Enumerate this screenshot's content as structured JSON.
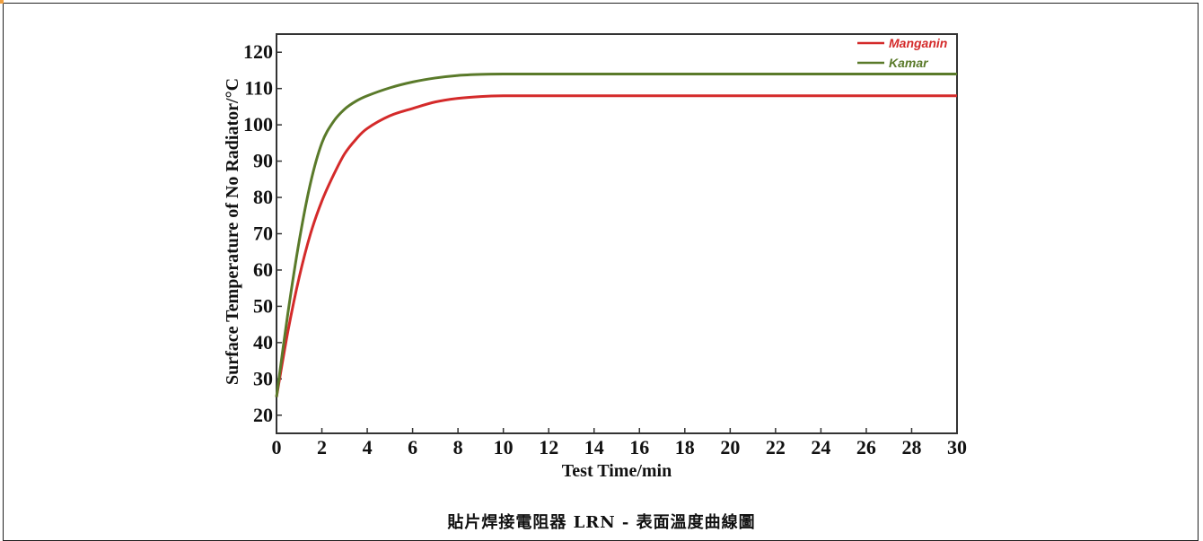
{
  "chart_data": {
    "type": "line",
    "xlabel": "Test Time/min",
    "ylabel": "Surface Temperature of No Radiator/°C",
    "xlim": [
      0,
      30
    ],
    "ylim": [
      15,
      125
    ],
    "x_ticks": [
      0,
      2,
      4,
      6,
      8,
      10,
      12,
      14,
      16,
      18,
      20,
      22,
      24,
      26,
      28,
      30
    ],
    "y_ticks": [
      20,
      30,
      40,
      50,
      60,
      70,
      80,
      90,
      100,
      110,
      120
    ],
    "grid": false,
    "legend_position": "top-right",
    "series": [
      {
        "name": "Manganin",
        "color": "#d42a2a",
        "x": [
          0,
          0.5,
          1,
          1.5,
          2,
          2.5,
          3,
          3.5,
          4,
          5,
          6,
          7,
          8,
          9,
          10,
          12,
          15,
          20,
          25,
          30
        ],
        "y": [
          25,
          43,
          58,
          70,
          79,
          86,
          92,
          96,
          99,
          102.5,
          104.5,
          106.3,
          107.3,
          107.8,
          108,
          108,
          108,
          108,
          108,
          108
        ]
      },
      {
        "name": "Kamar",
        "color": "#5a7a2a",
        "x": [
          0,
          0.5,
          1,
          1.5,
          2,
          2.5,
          3,
          3.5,
          4,
          5,
          6,
          7,
          8,
          9,
          10,
          12,
          15,
          20,
          25,
          30
        ],
        "y": [
          25,
          48,
          68,
          84,
          95,
          100.8,
          104.3,
          106.5,
          108,
          110.2,
          111.8,
          112.9,
          113.6,
          113.9,
          114,
          114,
          114,
          114,
          114,
          114
        ]
      }
    ]
  },
  "caption": "貼片焊接電阻器  LRN - 表面溫度曲線圖"
}
